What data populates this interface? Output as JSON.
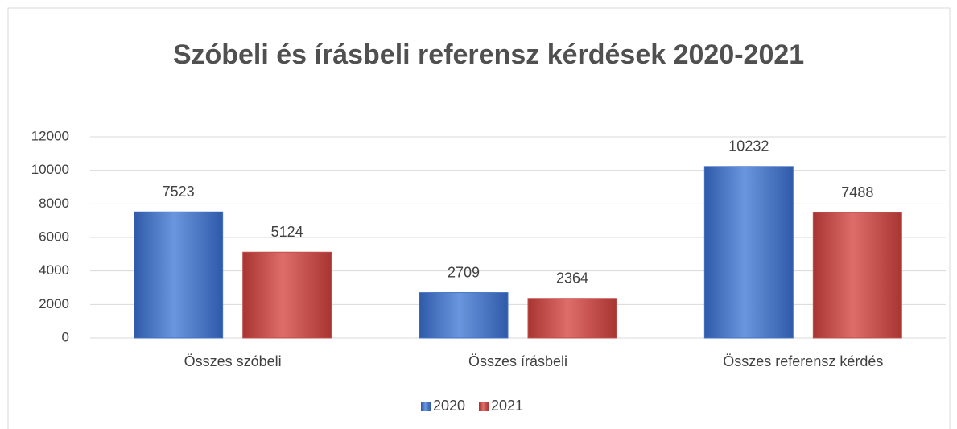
{
  "chart_data": {
    "type": "bar",
    "title": "Szóbeli és írásbeli referensz kérdések 2020-2021",
    "categories": [
      "Összes szóbeli",
      "Összes írásbeli",
      "Összes referensz kérdés"
    ],
    "series": [
      {
        "name": "2020",
        "color": "#4472c4",
        "values": [
          7523,
          2709,
          10232
        ]
      },
      {
        "name": "2021",
        "color": "#c0504d",
        "values": [
          5124,
          2364,
          7488
        ]
      }
    ],
    "ylim": [
      0,
      12000
    ],
    "yticks": [
      0,
      2000,
      4000,
      6000,
      8000,
      10000,
      12000
    ],
    "grid": true,
    "legend": "bottom"
  }
}
